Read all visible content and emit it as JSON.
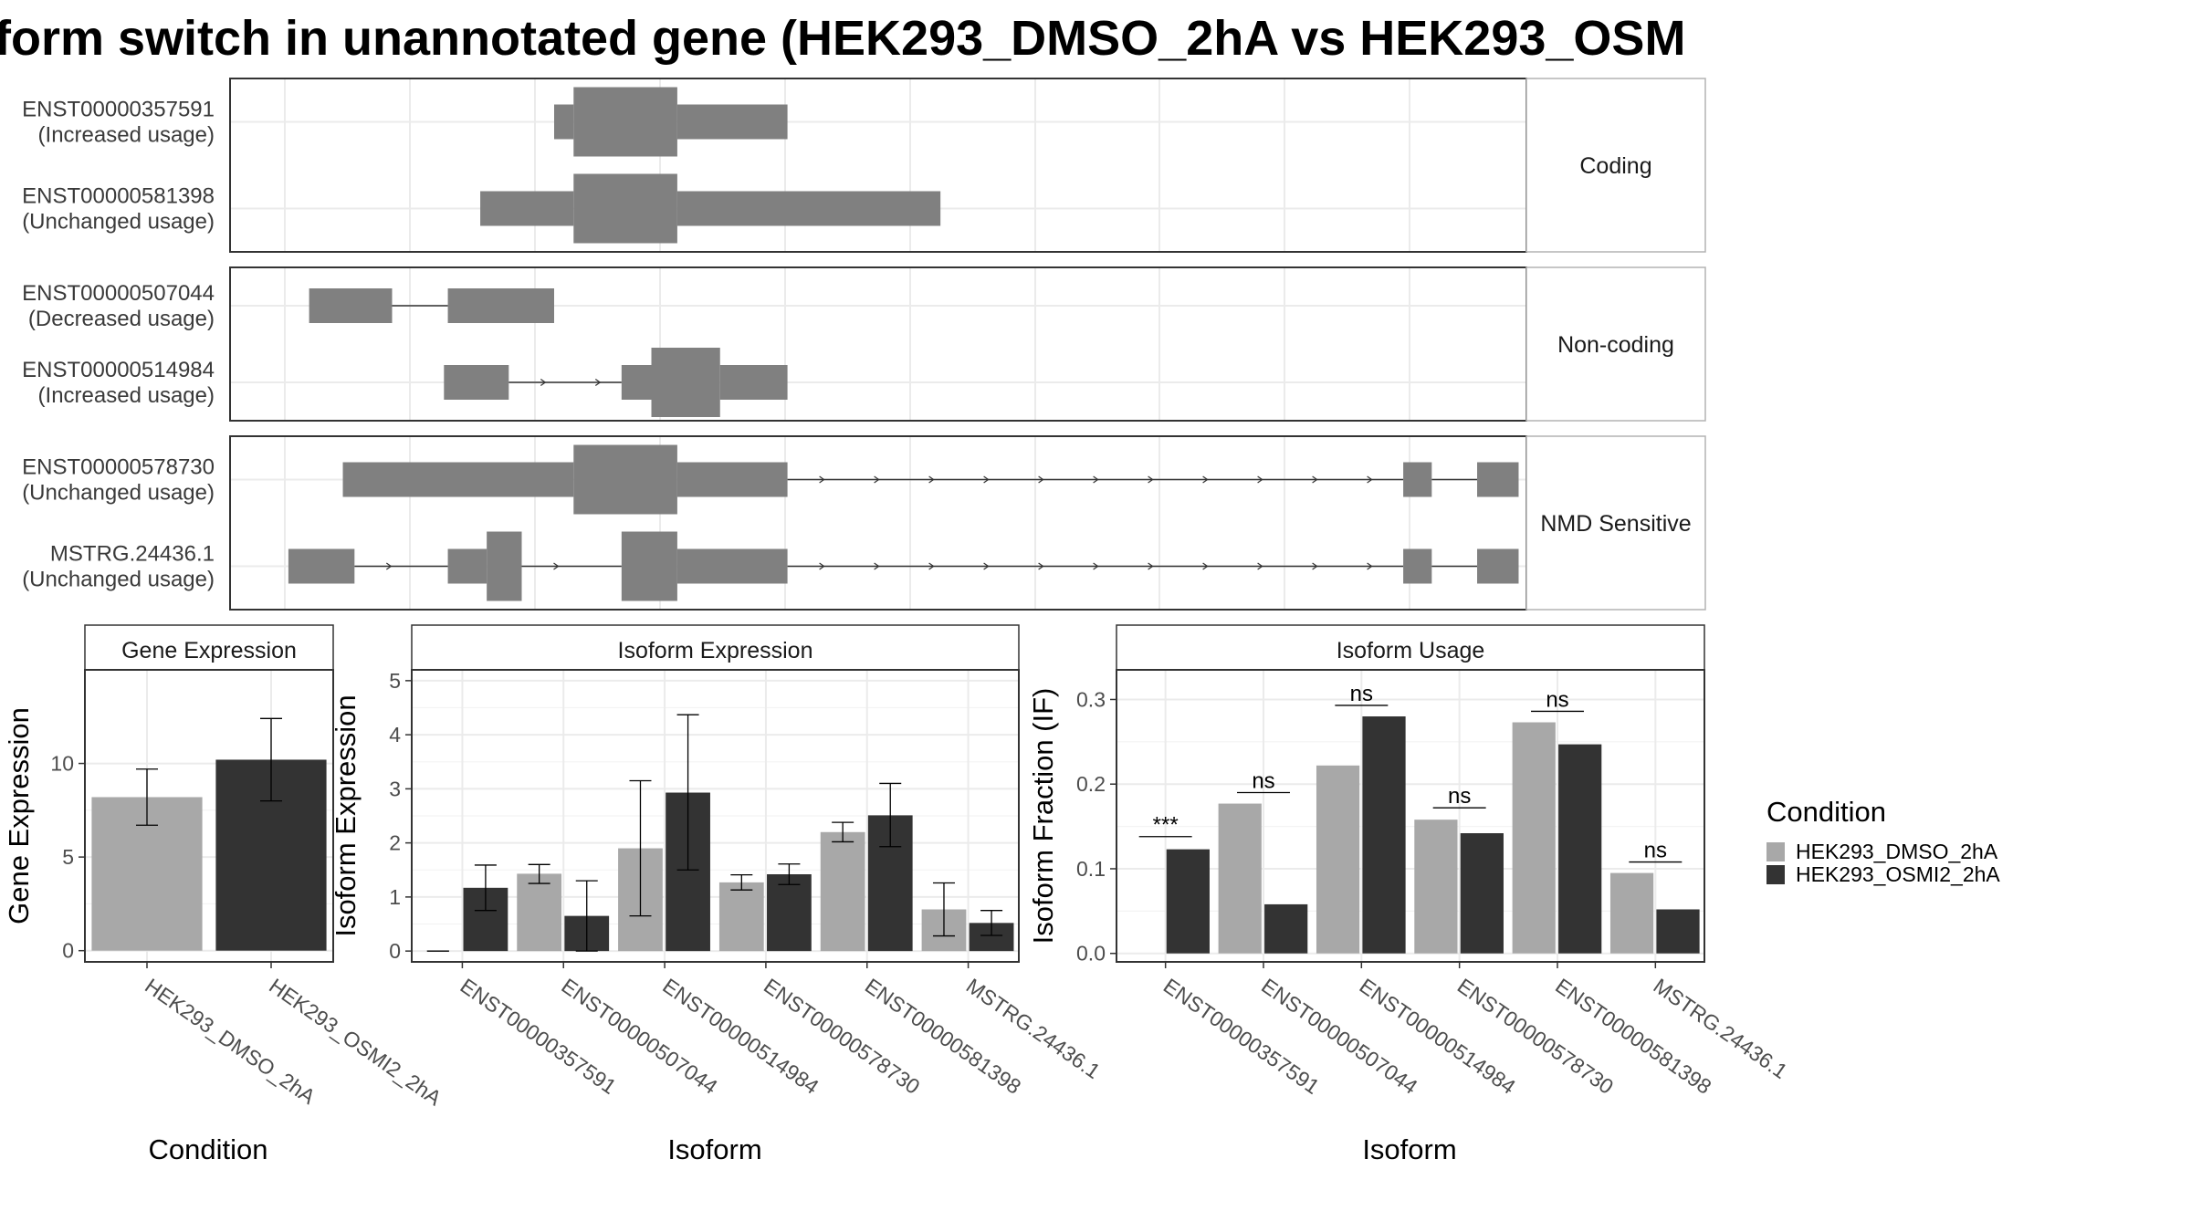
{
  "title": "form switch in unannotated gene (HEK293_DMSO_2hA vs HEK293_OSM",
  "colors": {
    "dmso": "#a8a8a8",
    "osmi": "#333333",
    "feature": "#808080",
    "grid": "#ebebeb",
    "panel_border": "#333333",
    "strip_border": "#b3b3b3"
  },
  "structure": {
    "groups": [
      {
        "label": "Coding",
        "transcripts": [
          {
            "id": "ENST00000357591",
            "usage": "(Increased usage)",
            "exons": [
              [
                0.25,
                0.265,
                "utr"
              ],
              [
                0.265,
                0.345,
                "cds"
              ],
              [
                0.345,
                0.43,
                "utr"
              ]
            ],
            "introns": []
          },
          {
            "id": "ENST00000581398",
            "usage": "(Unchanged usage)",
            "exons": [
              [
                0.193,
                0.265,
                "utr"
              ],
              [
                0.265,
                0.345,
                "cds"
              ],
              [
                0.345,
                0.548,
                "utr"
              ]
            ],
            "introns": []
          }
        ]
      },
      {
        "label": "Non-coding",
        "transcripts": [
          {
            "id": "ENST00000507044",
            "usage": "(Decreased usage)",
            "exons": [
              [
                0.061,
                0.125,
                "utr"
              ],
              [
                0.168,
                0.25,
                "utr"
              ]
            ],
            "introns": [
              [
                0.125,
                0.168,
                false
              ]
            ]
          },
          {
            "id": "ENST00000514984",
            "usage": "(Increased usage)",
            "exons": [
              [
                0.165,
                0.215,
                "utr"
              ],
              [
                0.302,
                0.325,
                "utr"
              ],
              [
                0.325,
                0.378,
                "cds"
              ],
              [
                0.378,
                0.43,
                "utr"
              ]
            ],
            "introns": [
              [
                0.215,
                0.302,
                true
              ]
            ]
          }
        ]
      },
      {
        "label": "NMD Sensitive",
        "transcripts": [
          {
            "id": "ENST00000578730",
            "usage": "(Unchanged usage)",
            "exons": [
              [
                0.087,
                0.265,
                "utr"
              ],
              [
                0.265,
                0.345,
                "cds"
              ],
              [
                0.345,
                0.43,
                "utr"
              ],
              [
                0.905,
                0.927,
                "utr"
              ],
              [
                0.962,
                0.994,
                "utr"
              ]
            ],
            "introns": [
              [
                0.43,
                0.905,
                true
              ],
              [
                0.927,
                0.962,
                false
              ]
            ]
          },
          {
            "id": "MSTRG.24436.1",
            "usage": "(Unchanged usage)",
            "exons": [
              [
                0.045,
                0.096,
                "utr"
              ],
              [
                0.168,
                0.198,
                "utr"
              ],
              [
                0.198,
                0.225,
                "cds"
              ],
              [
                0.302,
                0.345,
                "cds"
              ],
              [
                0.345,
                0.43,
                "utr"
              ],
              [
                0.905,
                0.927,
                "utr"
              ],
              [
                0.962,
                0.994,
                "utr"
              ]
            ],
            "introns": [
              [
                0.096,
                0.168,
                true
              ],
              [
                0.225,
                0.302,
                true
              ],
              [
                0.43,
                0.905,
                true
              ],
              [
                0.927,
                0.962,
                false
              ]
            ]
          }
        ]
      }
    ]
  },
  "chart_data": [
    {
      "type": "bar",
      "title": "Gene Expression",
      "xlabel": "Condition",
      "ylabel": "Gene Expression",
      "ylim": [
        -0.6,
        15
      ],
      "yticks": [
        0,
        5,
        10
      ],
      "categories": [
        "HEK293_DMSO_2hA",
        "HEK293_OSMI2_2hA"
      ],
      "series": [
        {
          "name": "Gene Expression",
          "values": [
            8.2,
            10.2
          ],
          "err_low": [
            6.7,
            8.0
          ],
          "err_high": [
            9.7,
            12.4
          ]
        }
      ]
    },
    {
      "type": "bar",
      "title": "Isoform Expression",
      "xlabel": "Isoform",
      "ylabel": "Isoform Expression",
      "ylim": [
        -0.2,
        5.2
      ],
      "yticks": [
        0,
        1,
        2,
        3,
        4,
        5
      ],
      "categories": [
        "ENST00000357591",
        "ENST00000507044",
        "ENST00000514984",
        "ENST00000578730",
        "ENST00000581398",
        "MSTRG.24436.1"
      ],
      "series": [
        {
          "name": "HEK293_DMSO_2hA",
          "values": [
            0.0,
            1.43,
            1.9,
            1.27,
            2.2,
            0.77
          ],
          "err_low": [
            0.0,
            1.25,
            0.65,
            1.13,
            2.02,
            0.28
          ],
          "err_high": [
            0.0,
            1.6,
            3.15,
            1.41,
            2.38,
            1.26
          ]
        },
        {
          "name": "HEK293_OSMI2_2hA",
          "values": [
            1.17,
            0.65,
            2.93,
            1.42,
            2.51,
            0.52
          ],
          "err_low": [
            0.75,
            0.0,
            1.5,
            1.23,
            1.93,
            0.29
          ],
          "err_high": [
            1.59,
            1.3,
            4.37,
            1.61,
            3.1,
            0.75
          ]
        }
      ]
    },
    {
      "type": "bar",
      "title": "Isoform Usage",
      "xlabel": "Isoform",
      "ylabel": "Isoform Fraction (IF)",
      "ylim": [
        -0.01,
        0.335
      ],
      "yticks": [
        0.0,
        0.1,
        0.2,
        0.3
      ],
      "ytick_labels": [
        "0.0",
        "0.1",
        "0.2",
        "0.3"
      ],
      "categories": [
        "ENST00000357591",
        "ENST00000507044",
        "ENST00000514984",
        "ENST00000578730",
        "ENST00000581398",
        "MSTRG.24436.1"
      ],
      "series": [
        {
          "name": "HEK293_DMSO_2hA",
          "values": [
            0.0,
            0.177,
            0.222,
            0.158,
            0.273,
            0.095
          ]
        },
        {
          "name": "HEK293_OSMI2_2hA",
          "values": [
            0.123,
            0.058,
            0.28,
            0.142,
            0.247,
            0.052
          ]
        }
      ],
      "significance": [
        {
          "label": "***",
          "y": 0.138
        },
        {
          "label": "ns",
          "y": 0.19
        },
        {
          "label": "ns",
          "y": 0.293
        },
        {
          "label": "ns",
          "y": 0.172
        },
        {
          "label": "ns",
          "y": 0.286
        },
        {
          "label": "ns",
          "y": 0.108
        }
      ]
    }
  ],
  "legend": {
    "title": "Condition",
    "placement": "right",
    "items": [
      {
        "label": "HEK293_DMSO_2hA",
        "color": "#a8a8a8"
      },
      {
        "label": "HEK293_OSMI2_2hA",
        "color": "#333333"
      }
    ]
  }
}
